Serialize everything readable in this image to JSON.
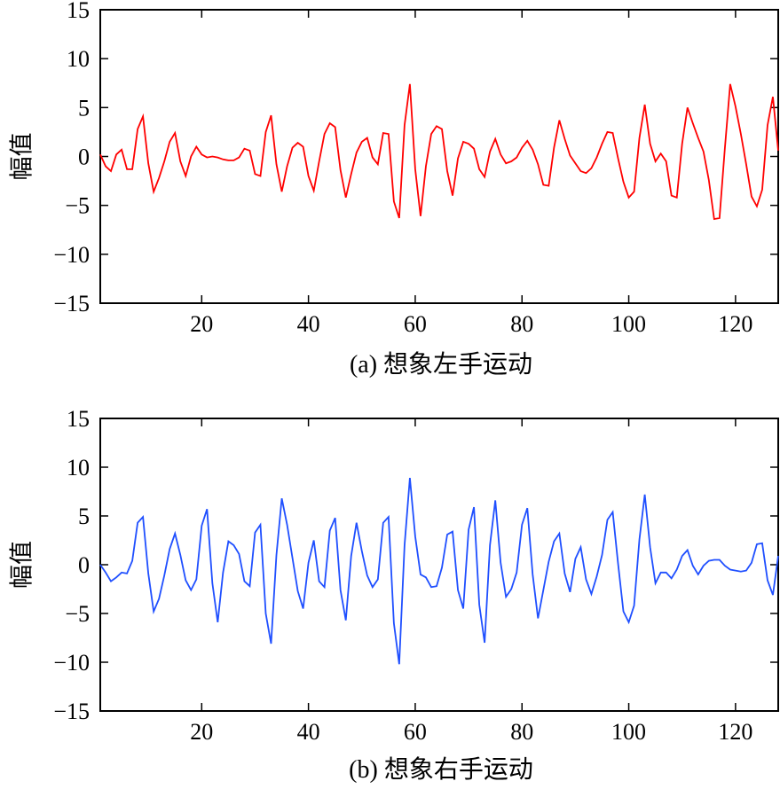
{
  "chart_data": [
    {
      "type": "line",
      "caption": "(a) 想象左手运动",
      "xlabel": "",
      "ylabel": "幅值",
      "xlim": [
        1,
        128
      ],
      "ylim": [
        -15,
        15
      ],
      "xticks": [
        20,
        40,
        60,
        80,
        100,
        120
      ],
      "yticks": [
        15,
        10,
        5,
        0,
        -5,
        -10,
        -15
      ],
      "ytick_labels": [
        "15",
        "10",
        "5",
        "0",
        "−5",
        "−10",
        "−15"
      ],
      "grid": false,
      "series": [
        {
          "color": "#ff0000",
          "x": [
            1,
            2,
            3,
            4,
            5,
            6,
            7,
            8,
            9,
            10,
            11,
            12,
            13,
            14,
            15,
            16,
            17,
            18,
            19,
            20,
            21,
            22,
            23,
            24,
            25,
            26,
            27,
            28,
            29,
            30,
            31,
            32,
            33,
            34,
            35,
            36,
            37,
            38,
            39,
            40,
            41,
            42,
            43,
            44,
            45,
            46,
            47,
            48,
            49,
            50,
            51,
            52,
            53,
            54,
            55,
            56,
            57,
            58,
            59,
            60,
            61,
            62,
            63,
            64,
            65,
            66,
            67,
            68,
            69,
            70,
            71,
            72,
            73,
            74,
            75,
            76,
            77,
            78,
            79,
            80,
            81,
            82,
            83,
            84,
            85,
            86,
            87,
            88,
            89,
            90,
            91,
            92,
            93,
            94,
            95,
            96,
            97,
            98,
            99,
            100,
            101,
            102,
            103,
            104,
            105,
            106,
            107,
            108,
            109,
            110,
            111,
            112,
            113,
            114,
            115,
            116,
            117,
            118,
            119,
            120,
            121,
            122,
            123,
            124,
            125,
            126,
            127,
            128
          ],
          "values": [
            0.2,
            -1.0,
            -1.5,
            0.2,
            0.7,
            -1.3,
            -1.3,
            2.8,
            4.1,
            -0.7,
            -3.6,
            -2.2,
            -0.5,
            1.5,
            2.4,
            -0.5,
            -2.0,
            0.0,
            1.0,
            0.2,
            -0.1,
            0.0,
            -0.1,
            -0.3,
            -0.4,
            -0.4,
            -0.1,
            0.8,
            0.6,
            -1.8,
            -2.0,
            2.5,
            4.2,
            -0.8,
            -3.6,
            -1.0,
            0.9,
            1.4,
            1.0,
            -2.0,
            -3.5,
            -0.5,
            2.3,
            3.4,
            3.0,
            -1.4,
            -4.2,
            -1.8,
            0.4,
            1.5,
            1.9,
            -0.1,
            -0.8,
            2.4,
            2.3,
            -4.6,
            -6.3,
            3.2,
            7.4,
            -1.3,
            -6.1,
            -1.0,
            2.3,
            3.1,
            2.8,
            -1.5,
            -4.0,
            -0.2,
            1.5,
            1.3,
            0.8,
            -1.3,
            -2.1,
            0.5,
            1.8,
            0.2,
            -0.7,
            -0.5,
            -0.1,
            0.9,
            1.6,
            0.7,
            -0.8,
            -2.9,
            -3.0,
            0.9,
            3.7,
            1.8,
            0.1,
            -0.7,
            -1.5,
            -1.7,
            -1.2,
            -0.1,
            1.3,
            2.5,
            2.4,
            -0.2,
            -2.6,
            -4.2,
            -3.6,
            1.9,
            5.3,
            1.3,
            -0.5,
            0.3,
            -0.5,
            -4.0,
            -4.2,
            1.3,
            5.0,
            3.4,
            1.9,
            0.5,
            -2.4,
            -6.4,
            -6.3,
            0.8,
            7.4,
            5.1,
            2.3,
            -0.8,
            -4.1,
            -5.1,
            -3.4,
            3.2,
            6.1,
            0.6
          ]
        }
      ]
    },
    {
      "type": "line",
      "caption": "(b) 想象右手运动",
      "xlabel": "",
      "ylabel": "幅值",
      "xlim": [
        1,
        128
      ],
      "ylim": [
        -15,
        15
      ],
      "xticks": [
        20,
        40,
        60,
        80,
        100,
        120
      ],
      "yticks": [
        15,
        10,
        5,
        0,
        -5,
        -10,
        -15
      ],
      "ytick_labels": [
        "15",
        "10",
        "5",
        "0",
        "−5",
        "−10",
        "−15"
      ],
      "grid": false,
      "series": [
        {
          "color": "#1f4fff",
          "x": [
            1,
            2,
            3,
            4,
            5,
            6,
            7,
            8,
            9,
            10,
            11,
            12,
            13,
            14,
            15,
            16,
            17,
            18,
            19,
            20,
            21,
            22,
            23,
            24,
            25,
            26,
            27,
            28,
            29,
            30,
            31,
            32,
            33,
            34,
            35,
            36,
            37,
            38,
            39,
            40,
            41,
            42,
            43,
            44,
            45,
            46,
            47,
            48,
            49,
            50,
            51,
            52,
            53,
            54,
            55,
            56,
            57,
            58,
            59,
            60,
            61,
            62,
            63,
            64,
            65,
            66,
            67,
            68,
            69,
            70,
            71,
            72,
            73,
            74,
            75,
            76,
            77,
            78,
            79,
            80,
            81,
            82,
            83,
            84,
            85,
            86,
            87,
            88,
            89,
            90,
            91,
            92,
            93,
            94,
            95,
            96,
            97,
            98,
            99,
            100,
            101,
            102,
            103,
            104,
            105,
            106,
            107,
            108,
            109,
            110,
            111,
            112,
            113,
            114,
            115,
            116,
            117,
            118,
            119,
            120,
            121,
            122,
            123,
            124,
            125,
            126,
            127,
            128
          ],
          "values": [
            0.0,
            -0.8,
            -1.7,
            -1.3,
            -0.8,
            -0.9,
            0.4,
            4.3,
            4.9,
            -0.9,
            -4.8,
            -3.5,
            -1.1,
            1.6,
            3.2,
            1.0,
            -1.6,
            -2.6,
            -1.5,
            4.0,
            5.7,
            -1.9,
            -5.9,
            -0.8,
            2.4,
            2.0,
            1.1,
            -1.7,
            -2.2,
            3.3,
            4.1,
            -5.0,
            -8.1,
            1.0,
            6.8,
            4.1,
            0.7,
            -2.7,
            -4.5,
            0.2,
            2.5,
            -1.7,
            -2.3,
            3.5,
            4.8,
            -2.6,
            -5.7,
            0.9,
            4.3,
            1.4,
            -1.1,
            -2.3,
            -1.5,
            4.3,
            4.9,
            -6.0,
            -10.2,
            2.0,
            8.9,
            2.9,
            -1.0,
            -1.3,
            -2.3,
            -2.2,
            -0.3,
            3.1,
            3.4,
            -2.6,
            -4.5,
            3.6,
            5.9,
            -4.1,
            -8.0,
            2.0,
            6.6,
            0.2,
            -3.3,
            -2.5,
            -0.8,
            4.1,
            5.8,
            -1.0,
            -5.5,
            -2.6,
            0.3,
            2.4,
            3.2,
            -0.9,
            -2.8,
            0.6,
            1.8,
            -1.5,
            -3.0,
            -1.2,
            1.0,
            4.6,
            5.4,
            0.1,
            -4.8,
            -5.9,
            -4.2,
            2.6,
            7.2,
            1.8,
            -1.9,
            -0.8,
            -0.8,
            -1.4,
            -0.5,
            0.9,
            1.5,
            -0.1,
            -1.0,
            -0.1,
            0.4,
            0.5,
            0.5,
            -0.1,
            -0.5,
            -0.6,
            -0.7,
            -0.6,
            0.2,
            2.1,
            2.2,
            -1.6,
            -3.1,
            0.9
          ]
        }
      ]
    }
  ]
}
